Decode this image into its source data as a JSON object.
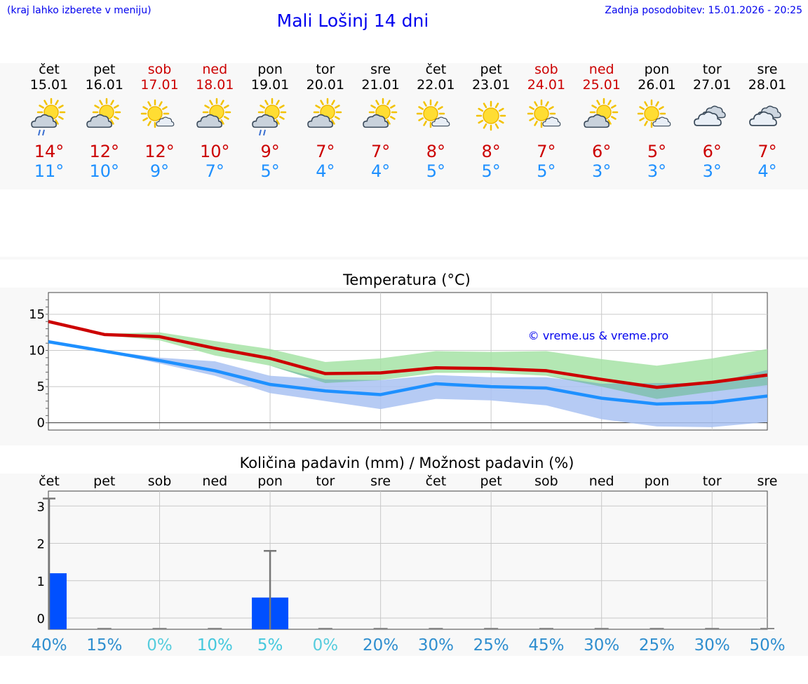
{
  "header": {
    "menu_hint": "(kraj lahko izberete v meniju)",
    "title": "Mali Lošinj 14 dni",
    "updated": "Zadnja posodobitev: 15.01.2026 - 20:25"
  },
  "colors": {
    "max_temp": "#cc0000",
    "min_temp": "#1e90ff",
    "link": "#0000ee",
    "max_band": "#a6e3a6",
    "min_band": "#a9c2f2",
    "overlap_band": "#7cc0a8",
    "bar": "#0050ff"
  },
  "days": [
    {
      "name": "čet",
      "date": "15.01",
      "weekend": false,
      "icon": "partly-sunny-rain-icon",
      "tmax": "14°",
      "tmin": "11°"
    },
    {
      "name": "pet",
      "date": "16.01",
      "weekend": false,
      "icon": "partly-sunny-icon",
      "tmax": "12°",
      "tmin": "10°"
    },
    {
      "name": "sob",
      "date": "17.01",
      "weekend": true,
      "icon": "mostly-sunny-icon",
      "tmax": "12°",
      "tmin": "9°"
    },
    {
      "name": "ned",
      "date": "18.01",
      "weekend": true,
      "icon": "partly-sunny-icon",
      "tmax": "10°",
      "tmin": "7°"
    },
    {
      "name": "pon",
      "date": "19.01",
      "weekend": false,
      "icon": "partly-sunny-rain-icon",
      "tmax": "9°",
      "tmin": "5°"
    },
    {
      "name": "tor",
      "date": "20.01",
      "weekend": false,
      "icon": "partly-sunny-icon",
      "tmax": "7°",
      "tmin": "4°"
    },
    {
      "name": "sre",
      "date": "21.01",
      "weekend": false,
      "icon": "partly-sunny-icon",
      "tmax": "7°",
      "tmin": "4°"
    },
    {
      "name": "čet",
      "date": "22.01",
      "weekend": false,
      "icon": "mostly-sunny-icon",
      "tmax": "8°",
      "tmin": "5°"
    },
    {
      "name": "pet",
      "date": "23.01",
      "weekend": false,
      "icon": "sunny-icon",
      "tmax": "8°",
      "tmin": "5°"
    },
    {
      "name": "sob",
      "date": "24.01",
      "weekend": true,
      "icon": "mostly-sunny-icon",
      "tmax": "7°",
      "tmin": "5°"
    },
    {
      "name": "ned",
      "date": "25.01",
      "weekend": true,
      "icon": "partly-sunny-icon",
      "tmax": "6°",
      "tmin": "3°"
    },
    {
      "name": "pon",
      "date": "26.01",
      "weekend": false,
      "icon": "mostly-sunny-icon",
      "tmax": "5°",
      "tmin": "3°"
    },
    {
      "name": "tor",
      "date": "27.01",
      "weekend": false,
      "icon": "cloudy-icon",
      "tmax": "6°",
      "tmin": "3°"
    },
    {
      "name": "sre",
      "date": "28.01",
      "weekend": false,
      "icon": "cloudy-icon",
      "tmax": "7°",
      "tmin": "4°"
    }
  ],
  "chart_data": [
    {
      "type": "line",
      "title": "Temperatura (°C)",
      "watermark": "© vreme.us & vreme.pro",
      "ylim": [
        -1,
        18
      ],
      "yticks": [
        0,
        5,
        10,
        15
      ],
      "x": [
        "15.01",
        "16.01",
        "17.01",
        "18.01",
        "19.01",
        "20.01",
        "21.01",
        "22.01",
        "23.01",
        "24.01",
        "25.01",
        "26.01",
        "27.01",
        "28.01"
      ],
      "series": [
        {
          "name": "max",
          "color": "#cc0000",
          "values": [
            14.0,
            12.2,
            11.9,
            10.3,
            8.9,
            6.8,
            6.9,
            7.6,
            7.5,
            7.2,
            6.0,
            4.9,
            5.6,
            6.6
          ]
        },
        {
          "name": "min",
          "color": "#1e90ff",
          "values": [
            11.2,
            9.9,
            8.6,
            7.2,
            5.3,
            4.4,
            3.9,
            5.4,
            5.0,
            4.8,
            3.4,
            2.6,
            2.8,
            3.7
          ]
        }
      ],
      "bands": [
        {
          "name": "max-range",
          "color": "#a6e3a6",
          "upper": [
            14.0,
            12.3,
            12.5,
            11.3,
            10.2,
            8.4,
            8.9,
            9.9,
            9.8,
            9.9,
            8.8,
            7.9,
            8.9,
            10.2
          ],
          "lower": [
            14.0,
            12.1,
            11.4,
            9.3,
            7.9,
            5.5,
            5.9,
            6.9,
            6.9,
            6.5,
            5.0,
            3.3,
            4.3,
            5.2
          ]
        },
        {
          "name": "min-range",
          "color": "#a9c2f2",
          "upper": [
            11.3,
            10.0,
            9.0,
            8.5,
            6.5,
            6.0,
            5.9,
            6.6,
            6.3,
            6.3,
            5.4,
            5.5,
            5.5,
            7.3
          ],
          "lower": [
            11.1,
            9.8,
            8.2,
            6.5,
            4.1,
            3.0,
            1.9,
            3.3,
            3.1,
            2.4,
            0.5,
            -0.5,
            -0.6,
            0.1
          ]
        }
      ]
    },
    {
      "type": "bar",
      "title": "Količina padavin (mm) / Možnost padavin (%)",
      "ylim": [
        -0.3,
        3.4
      ],
      "yticks": [
        0,
        1,
        2,
        3
      ],
      "categories": [
        "čet",
        "pet",
        "sob",
        "ned",
        "pon",
        "tor",
        "sre",
        "čet",
        "pet",
        "sob",
        "ned",
        "pon",
        "tor",
        "sre"
      ],
      "values": [
        1.2,
        0,
        0,
        0,
        0.55,
        0,
        0,
        0,
        0,
        0,
        0,
        0,
        0,
        0
      ],
      "error_max": [
        3.2,
        0,
        0,
        0,
        1.8,
        0,
        0,
        0,
        0,
        0,
        0,
        0,
        0,
        0
      ],
      "probability": [
        "40%",
        "15%",
        "0%",
        "10%",
        "5%",
        "0%",
        "20%",
        "30%",
        "25%",
        "45%",
        "30%",
        "25%",
        "30%",
        "50%"
      ]
    }
  ]
}
